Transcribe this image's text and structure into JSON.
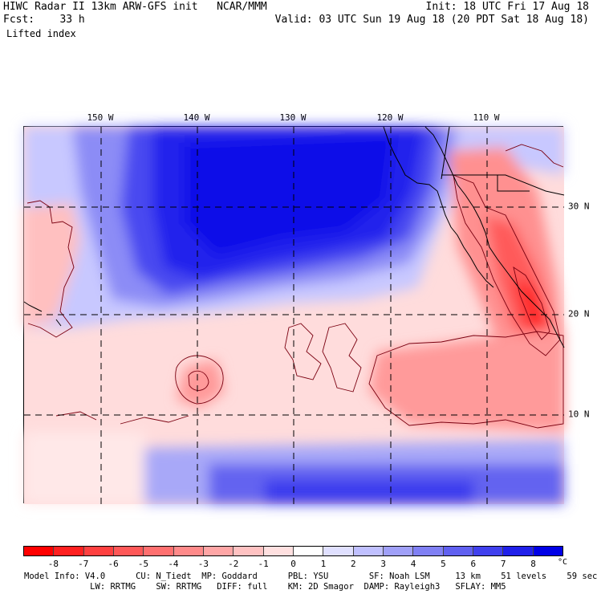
{
  "header": {
    "line1_left": "HIWC Radar II 13km ARW-GFS init   NCAR/MMM",
    "line2_left": "Fcst:    33 h",
    "line3_left": "Lifted index",
    "line1_right": "Init: 18 UTC Fri 17 Aug 18",
    "line2_right": "Valid: 03 UTC Sun 19 Aug 18 (20 PDT Sat 18 Aug 18)"
  },
  "map": {
    "variable": "Lifted index",
    "longitude_labels": [
      "150 W",
      "140 W",
      "130 W",
      "120 W",
      "110 W"
    ],
    "latitude_labels": [
      "30 N",
      "20 N",
      "10 N"
    ],
    "gridline_style": "dashed"
  },
  "colorbar": {
    "unit": "°C",
    "tick_labels": [
      "-8",
      "-7",
      "-6",
      "-5",
      "-4",
      "-3",
      "-2",
      "-1",
      "0",
      "1",
      "2",
      "3",
      "4",
      "5",
      "6",
      "7",
      "8"
    ],
    "colors": [
      "#ff0000",
      "#ff2020",
      "#ff4040",
      "#ff5858",
      "#ff7070",
      "#ff8a8a",
      "#ffa6a6",
      "#ffc2c2",
      "#ffe0e0",
      "#ffffff",
      "#e0e0ff",
      "#c0c0ff",
      "#a0a0f8",
      "#8080f4",
      "#6060f0",
      "#4040ee",
      "#2020ea",
      "#0000e6"
    ]
  },
  "footer": {
    "line1": "Model Info: V4.0      CU: N_Tiedt  MP: Goddard      PBL: YSU        SF: Noah LSM     13 km    51 levels    59 sec",
    "line2": "             LW: RRTMG    SW: RRTMG   DIFF: full    KM: 2D Smagor  DAMP: Rayleigh3   SFLAY: MM5"
  }
}
